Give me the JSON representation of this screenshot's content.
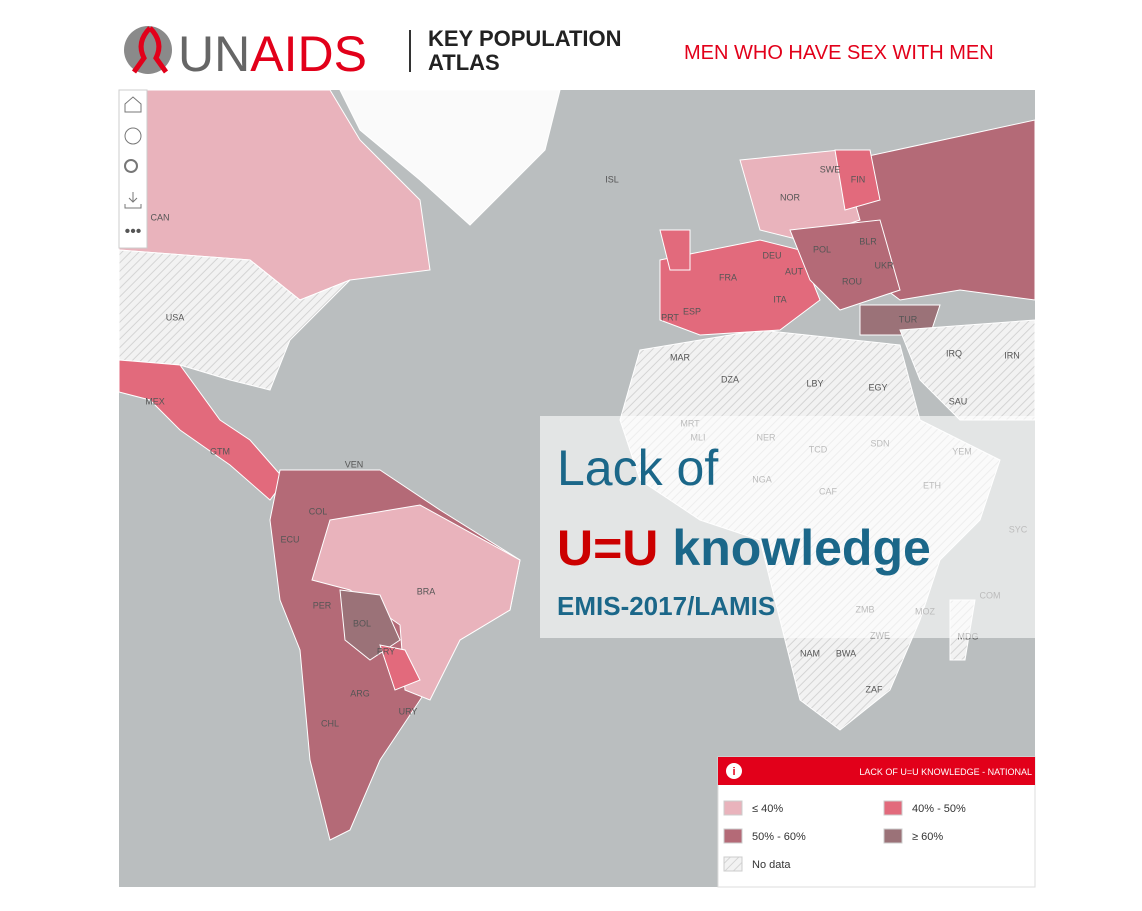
{
  "header": {
    "logo_left": "UN",
    "logo_right": "AIDS",
    "atlas": [
      "KEY POPULATION",
      "ATLAS"
    ],
    "population": "MEN WHO HAVE SEX WITH MEN"
  },
  "map": {
    "country_labels": [
      "CAN",
      "USA",
      "MEX",
      "GTM",
      "ISL",
      "SWE",
      "NOR",
      "FIN",
      "DEU",
      "POL",
      "BLR",
      "UKR",
      "FRA",
      "AUT",
      "ROU",
      "ESP",
      "PRT",
      "ITA",
      "TUR",
      "IRQ",
      "IRN",
      "MAR",
      "DZA",
      "LBY",
      "EGY",
      "SAU",
      "MRT",
      "MLI",
      "NER",
      "TCD",
      "SDN",
      "YEM",
      "ETH",
      "NGA",
      "CAF",
      "VEN",
      "COL",
      "ECU",
      "PER",
      "BRA",
      "BOL",
      "PRY",
      "URY",
      "ARG",
      "CHL",
      "NAM",
      "BWA",
      "ZWE",
      "ZMB",
      "MOZ",
      "MDG",
      "ZAF",
      "SYC",
      "COM"
    ]
  },
  "overlay": {
    "line1": "Lack of",
    "highlight": "U=U",
    "rest": "knowledge",
    "source": "EMIS-2017/LAMIS"
  },
  "legend": {
    "title": "LACK OF U=U KNOWLEDGE - NATIONAL",
    "items": [
      {
        "label": "≤ 40%",
        "color": "#e9b3bc"
      },
      {
        "label": "40% - 50%",
        "color": "#e26a7c"
      },
      {
        "label": "50% - 60%",
        "color": "#b46a77"
      },
      {
        "label": "≥ 60%",
        "color": "#9b7278"
      },
      {
        "label": "No data",
        "color": "#f4f4f4"
      }
    ]
  }
}
